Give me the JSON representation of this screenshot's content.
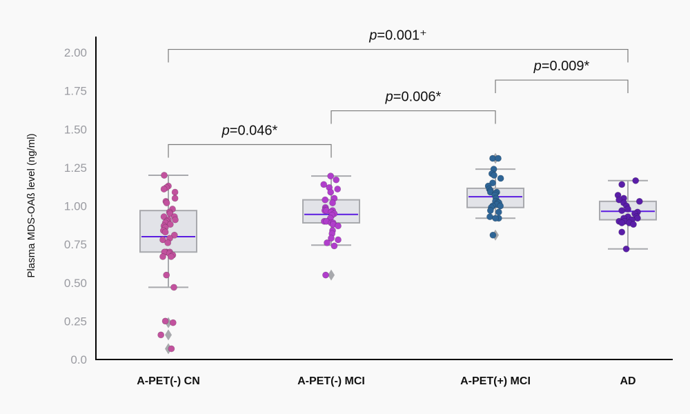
{
  "chart_data": {
    "type": "box",
    "title": "",
    "xlabel": "",
    "ylabel": "Plasma MDS-OAß level (ng/ml)",
    "ylim": [
      0,
      2.1
    ],
    "yticks": [
      {
        "value": 0.0,
        "label": "0.0"
      },
      {
        "value": 0.25,
        "label": "0.25"
      },
      {
        "value": 0.5,
        "label": "0.50"
      },
      {
        "value": 0.75,
        "label": "0.75"
      },
      {
        "value": 1.0,
        "label": "1.00"
      },
      {
        "value": 1.25,
        "label": "1.25"
      },
      {
        "value": 1.5,
        "label": "1.50"
      },
      {
        "value": 1.75,
        "label": "1.75"
      },
      {
        "value": 2.0,
        "label": "2.00"
      }
    ],
    "grid": false,
    "colors": {
      "box_fill": "#e2e3e8",
      "box_edge": "#a8a9ad",
      "median": "#5a1be0",
      "outlier": "#a8a9ad",
      "bracket": "#7a7a7a",
      "axis": "#000000"
    },
    "groups": [
      {
        "name": "A-PET(-) CN",
        "color": "#c2529e",
        "q1": 0.7,
        "median": 0.8,
        "q3": 0.97,
        "whisker_low": 0.47,
        "whisker_high": 1.2,
        "outliers": [
          0.24,
          0.16,
          0.07
        ],
        "points": [
          {
            "v": 1.2,
            "j": -0.15
          },
          {
            "v": 1.13,
            "j": 0.0
          },
          {
            "v": 1.12,
            "j": -0.07
          },
          {
            "v": 1.11,
            "j": -0.16
          },
          {
            "v": 1.09,
            "j": 0.24
          },
          {
            "v": 1.05,
            "j": 0.24
          },
          {
            "v": 1.03,
            "j": -0.09
          },
          {
            "v": 1.02,
            "j": -0.06
          },
          {
            "v": 0.98,
            "j": 0.15
          },
          {
            "v": 0.96,
            "j": 0.04
          },
          {
            "v": 0.95,
            "j": 0.06
          },
          {
            "v": 0.93,
            "j": -0.16
          },
          {
            "v": 0.93,
            "j": 0.22
          },
          {
            "v": 0.91,
            "j": 0.25
          },
          {
            "v": 0.91,
            "j": 0.0
          },
          {
            "v": 0.9,
            "j": -0.06
          },
          {
            "v": 0.89,
            "j": -0.11
          },
          {
            "v": 0.88,
            "j": 0.07
          },
          {
            "v": 0.87,
            "j": -0.16
          },
          {
            "v": 0.86,
            "j": -0.11
          },
          {
            "v": 0.84,
            "j": -0.18
          },
          {
            "v": 0.83,
            "j": -0.11
          },
          {
            "v": 0.81,
            "j": 0.22
          },
          {
            "v": 0.79,
            "j": 0.05
          },
          {
            "v": 0.78,
            "j": -0.2
          },
          {
            "v": 0.76,
            "j": -0.02
          },
          {
            "v": 0.7,
            "j": -0.07
          },
          {
            "v": 0.7,
            "j": 0.05
          },
          {
            "v": 0.7,
            "j": -0.14
          },
          {
            "v": 0.69,
            "j": 0.04
          },
          {
            "v": 0.68,
            "j": 0.16
          },
          {
            "v": 0.67,
            "j": -0.2
          },
          {
            "v": 0.67,
            "j": 0.1
          },
          {
            "v": 0.55,
            "j": -0.07
          },
          {
            "v": 0.47,
            "j": 0.2
          },
          {
            "v": 0.25,
            "j": -0.11
          },
          {
            "v": 0.24,
            "j": 0.17
          },
          {
            "v": 0.16,
            "j": -0.27
          },
          {
            "v": 0.07,
            "j": 0.11
          }
        ]
      },
      {
        "name": "A-PET(-) MCI",
        "color": "#b03ecb",
        "q1": 0.89,
        "median": 0.945,
        "q3": 1.04,
        "whisker_low": 0.745,
        "whisker_high": 1.195,
        "outliers": [
          0.55
        ],
        "points": [
          {
            "v": 1.195,
            "j": -0.02
          },
          {
            "v": 1.17,
            "j": 0.18
          },
          {
            "v": 1.14,
            "j": -0.27
          },
          {
            "v": 1.12,
            "j": -0.07
          },
          {
            "v": 1.11,
            "j": 0.23
          },
          {
            "v": 1.09,
            "j": -0.02
          },
          {
            "v": 1.05,
            "j": 0.11
          },
          {
            "v": 1.04,
            "j": -0.22
          },
          {
            "v": 1.02,
            "j": 0.05
          },
          {
            "v": 0.99,
            "j": -0.21
          },
          {
            "v": 0.98,
            "j": -0.2
          },
          {
            "v": 0.97,
            "j": -0.23
          },
          {
            "v": 0.97,
            "j": -0.17
          },
          {
            "v": 0.97,
            "j": 0.05
          },
          {
            "v": 0.96,
            "j": 0.0
          },
          {
            "v": 0.95,
            "j": 0.11
          },
          {
            "v": 0.94,
            "j": 0.03
          },
          {
            "v": 0.92,
            "j": -0.03
          },
          {
            "v": 0.9,
            "j": -0.25
          },
          {
            "v": 0.9,
            "j": -0.17
          },
          {
            "v": 0.89,
            "j": 0.0
          },
          {
            "v": 0.89,
            "j": 0.07
          },
          {
            "v": 0.88,
            "j": 0.07
          },
          {
            "v": 0.87,
            "j": 0.25
          },
          {
            "v": 0.84,
            "j": 0.05
          },
          {
            "v": 0.82,
            "j": 0.03
          },
          {
            "v": 0.79,
            "j": 0.0
          },
          {
            "v": 0.78,
            "j": 0.25
          },
          {
            "v": 0.76,
            "j": -0.15
          },
          {
            "v": 0.74,
            "j": 0.11
          },
          {
            "v": 0.55,
            "j": -0.2
          }
        ]
      },
      {
        "name": "A-PET(+) MCI",
        "color": "#2f6596",
        "q1": 0.99,
        "median": 1.06,
        "q3": 1.115,
        "whisker_low": 0.92,
        "whisker_high": 1.24,
        "outliers": [
          1.31,
          0.81
        ],
        "points": [
          {
            "v": 1.31,
            "j": -0.1
          },
          {
            "v": 1.31,
            "j": 0.1
          },
          {
            "v": 1.24,
            "j": -0.06
          },
          {
            "v": 1.21,
            "j": -0.13
          },
          {
            "v": 1.2,
            "j": -0.05
          },
          {
            "v": 1.18,
            "j": 0.19
          },
          {
            "v": 1.15,
            "j": -0.1
          },
          {
            "v": 1.13,
            "j": -0.26
          },
          {
            "v": 1.11,
            "j": -0.22
          },
          {
            "v": 1.1,
            "j": -0.18
          },
          {
            "v": 1.09,
            "j": 0.05
          },
          {
            "v": 1.09,
            "j": -0.18
          },
          {
            "v": 1.08,
            "j": 0.0
          },
          {
            "v": 1.07,
            "j": -0.02
          },
          {
            "v": 1.05,
            "j": 0.02
          },
          {
            "v": 1.03,
            "j": 0.0
          },
          {
            "v": 1.025,
            "j": 0.1
          },
          {
            "v": 1.02,
            "j": 0.13
          },
          {
            "v": 1.01,
            "j": 0.05
          },
          {
            "v": 1.0,
            "j": 0.18
          },
          {
            "v": 1.0,
            "j": -0.1
          },
          {
            "v": 0.99,
            "j": -0.15
          },
          {
            "v": 0.97,
            "j": -0.18
          },
          {
            "v": 0.96,
            "j": 0.12
          },
          {
            "v": 0.93,
            "j": -0.2
          },
          {
            "v": 0.92,
            "j": 0.12
          },
          {
            "v": 0.92,
            "j": 0.0
          },
          {
            "v": 0.81,
            "j": -0.09
          }
        ]
      },
      {
        "name": "AD",
        "color": "#5a1ea8",
        "q1": 0.91,
        "median": 0.965,
        "q3": 1.03,
        "whisker_low": 0.72,
        "whisker_high": 1.165,
        "outliers": [],
        "points": [
          {
            "v": 1.165,
            "j": 0.28
          },
          {
            "v": 1.14,
            "j": -0.22
          },
          {
            "v": 1.07,
            "j": -0.36
          },
          {
            "v": 1.05,
            "j": -0.15
          },
          {
            "v": 1.04,
            "j": -0.32
          },
          {
            "v": 1.03,
            "j": 0.42
          },
          {
            "v": 1.02,
            "j": -0.15
          },
          {
            "v": 1.0,
            "j": -0.05
          },
          {
            "v": 0.98,
            "j": 0.0
          },
          {
            "v": 0.97,
            "j": -0.22
          },
          {
            "v": 0.96,
            "j": 0.35
          },
          {
            "v": 0.95,
            "j": 0.25
          },
          {
            "v": 0.93,
            "j": 0.32
          },
          {
            "v": 0.92,
            "j": 0.35
          },
          {
            "v": 0.93,
            "j": 0.0
          },
          {
            "v": 0.92,
            "j": -0.15
          },
          {
            "v": 0.91,
            "j": 0.15
          },
          {
            "v": 0.9,
            "j": -0.32
          },
          {
            "v": 0.9,
            "j": -0.12
          },
          {
            "v": 0.89,
            "j": -0.22
          },
          {
            "v": 0.89,
            "j": 0.05
          },
          {
            "v": 0.88,
            "j": 0.2
          },
          {
            "v": 0.83,
            "j": -0.22
          },
          {
            "v": 0.72,
            "j": -0.06
          }
        ]
      }
    ],
    "annotations": [
      {
        "from": 0,
        "to": 1,
        "y": 1.4,
        "text_p": "p",
        "text_rest": "=0.046*"
      },
      {
        "from": 1,
        "to": 2,
        "y": 1.62,
        "text_p": "p",
        "text_rest": "=0.006*"
      },
      {
        "from": 2,
        "to": 3,
        "y": 1.82,
        "text_p": "p",
        "text_rest": "=0.009*"
      },
      {
        "from": 0,
        "to": 3,
        "y": 2.02,
        "text_p": "p",
        "text_rest": "=0.001⁺"
      }
    ]
  }
}
